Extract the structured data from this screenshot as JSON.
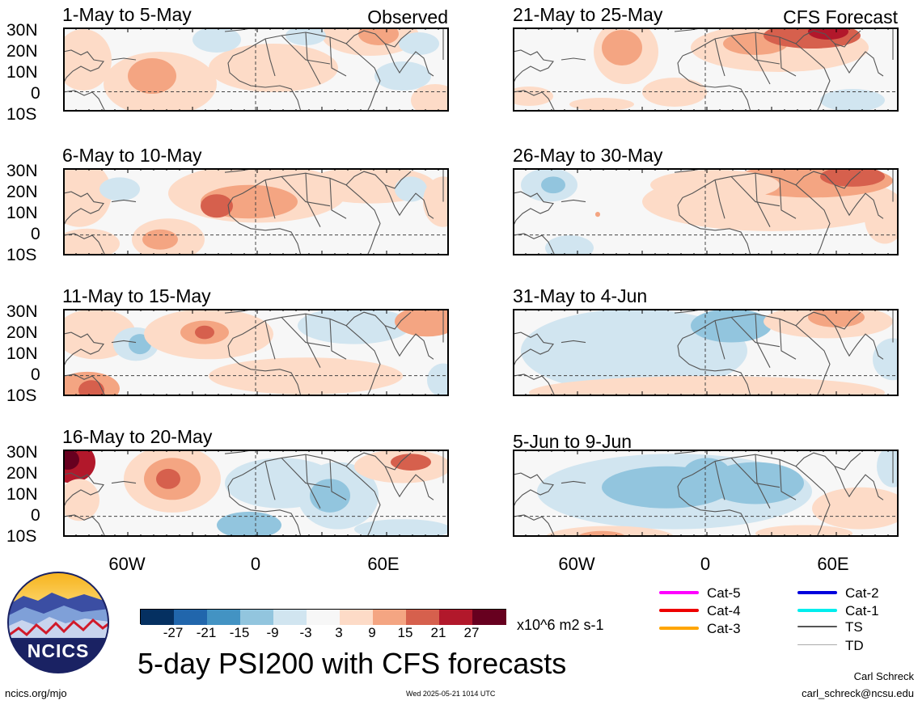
{
  "panels": [
    {
      "title": "1-May to 5-May",
      "label": "Observed"
    },
    {
      "title": "6-May to 10-May",
      "label": ""
    },
    {
      "title": "11-May to 15-May",
      "label": ""
    },
    {
      "title": "16-May to 20-May",
      "label": ""
    },
    {
      "title": "21-May to 25-May",
      "label": "CFS Forecast"
    },
    {
      "title": "26-May to 30-May",
      "label": ""
    },
    {
      "title": "31-May to 4-Jun",
      "label": ""
    },
    {
      "title": "5-Jun to 9-Jun",
      "label": ""
    }
  ],
  "y_axis_labels": [
    "30N",
    "20N",
    "10N",
    "0",
    "10S"
  ],
  "x_axis_labels": [
    "60W",
    "0",
    "60E"
  ],
  "colorbar": {
    "colors": [
      "#053061",
      "#2166ac",
      "#4393c3",
      "#92c5de",
      "#d1e5f0",
      "#f7f7f7",
      "#fddbc7",
      "#f4a582",
      "#d6604d",
      "#b2182b",
      "#67001f"
    ],
    "ticks": [
      "-27",
      "-21",
      "-15",
      "-9",
      "-3",
      "3",
      "9",
      "15",
      "21",
      "27"
    ],
    "units": "x10^6 m2 s-1"
  },
  "legend": [
    {
      "label": "Cat-5",
      "color": "#ff00ff"
    },
    {
      "label": "Cat-4",
      "color": "#ee0000"
    },
    {
      "label": "Cat-3",
      "color": "#ffa500"
    },
    {
      "label": "Cat-2",
      "color": "#0000dd"
    },
    {
      "label": "Cat-1",
      "color": "#00eeee"
    },
    {
      "label": "TS",
      "color": "#555555"
    },
    {
      "label": "TD",
      "color": "#aaaaaa"
    }
  ],
  "logo_text": "NCICS",
  "main_title": "5-day PSI200 with CFS forecasts",
  "footer": {
    "url": "ncics.org/mjo",
    "timestamp": "Wed 2025-05-21 1014 UTC",
    "author": "Carl Schreck",
    "email": "carl_schreck@ncsu.edu"
  }
}
